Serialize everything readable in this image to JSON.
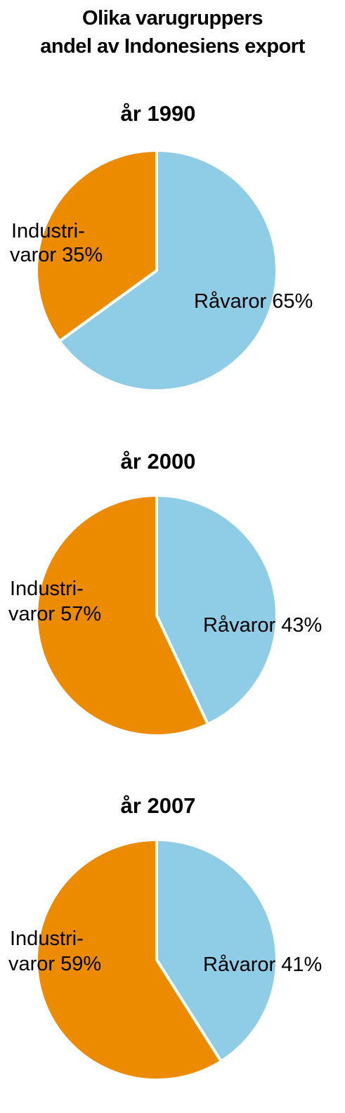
{
  "title_line1": "Olika varugruppers",
  "title_line2": "andel av Indonesiens export",
  "colors": {
    "ravaror": "#8fcde6",
    "industrivaror": "#ec8a00"
  },
  "chart_data": [
    {
      "type": "pie",
      "title": "år 1990",
      "series": [
        {
          "name": "Råvaror",
          "value": 65,
          "label": "Råvaror 65%"
        },
        {
          "name": "Industrivaror",
          "value": 35,
          "label_line1": "Industri-",
          "label_line2": "varor 35%"
        }
      ]
    },
    {
      "type": "pie",
      "title": "år 2000",
      "series": [
        {
          "name": "Råvaror",
          "value": 43,
          "label": "Råvaror 43%"
        },
        {
          "name": "Industrivaror",
          "value": 57,
          "label_line1": "Industri-",
          "label_line2": "varor 57%"
        }
      ]
    },
    {
      "type": "pie",
      "title": "år 2007",
      "series": [
        {
          "name": "Råvaror",
          "value": 41,
          "label": "Råvaror 41%"
        },
        {
          "name": "Industrivaror",
          "value": 59,
          "label_line1": "Industri-",
          "label_line2": "varor 59%"
        }
      ]
    }
  ]
}
